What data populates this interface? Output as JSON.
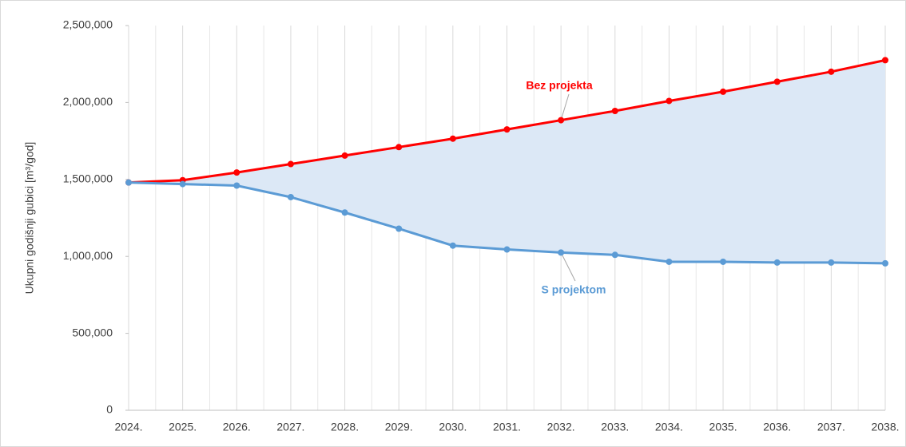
{
  "chart_data": {
    "type": "line",
    "y_label": "Ukupni godišnji gubici [m³/god]",
    "categories": [
      "2024.",
      "2025.",
      "2026.",
      "2027.",
      "2028.",
      "2029.",
      "2030.",
      "2031.",
      "2032.",
      "2033.",
      "2034.",
      "2035.",
      "2036.",
      "2037.",
      "2038."
    ],
    "series": [
      {
        "name": "Bez projekta",
        "color": "#ff0000",
        "values": [
          1480000,
          1495000,
          1545000,
          1600000,
          1655000,
          1710000,
          1765000,
          1825000,
          1885000,
          1945000,
          2010000,
          2070000,
          2135000,
          2200000,
          2275000
        ]
      },
      {
        "name": "S projektom",
        "color": "#5b9bd5",
        "values": [
          1480000,
          1470000,
          1460000,
          1385000,
          1285000,
          1180000,
          1070000,
          1045000,
          1025000,
          1010000,
          965000,
          965000,
          960000,
          960000,
          955000
        ]
      }
    ],
    "fill_between_color": "#dce8f6",
    "ylim": [
      0,
      2500000
    ],
    "yticks": [
      0,
      {
        "value": 500000,
        "label": "500,000"
      },
      {
        "value": 1000000,
        "label": "1,000,000"
      },
      {
        "value": 1500000,
        "label": "1,500,000"
      },
      {
        "value": 2000000,
        "label": "2,000,000"
      },
      {
        "value": 2500000,
        "label": "2,500,000"
      }
    ],
    "vertical_grid": true
  }
}
